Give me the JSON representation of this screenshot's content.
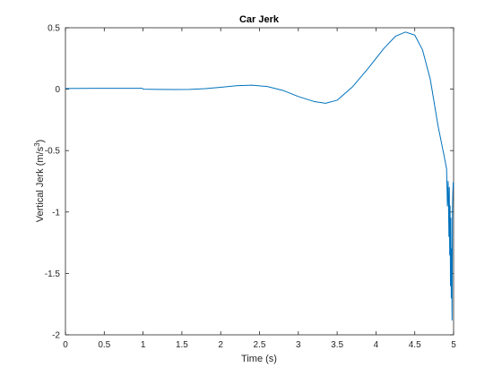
{
  "chart_data": {
    "type": "line",
    "title": "Car Jerk",
    "xlabel": "Time (s)",
    "ylabel_main": "Vertical Jerk (m/s",
    "ylabel_sup": "3",
    "ylabel_end": ")",
    "xlim": [
      0,
      5
    ],
    "ylim": [
      -2,
      0.5
    ],
    "xticks": [
      0,
      0.5,
      1,
      1.5,
      2,
      2.5,
      3,
      3.5,
      4,
      4.5,
      5
    ],
    "xtick_labels": [
      "0",
      "0.5",
      "1",
      "1.5",
      "2",
      "2.5",
      "3",
      "3.5",
      "4",
      "4.5",
      "5"
    ],
    "yticks": [
      0.5,
      0,
      -0.5,
      -1,
      -1.5,
      -2
    ],
    "ytick_labels": [
      "0.5",
      "0",
      "-0.5",
      "-1",
      "-1.5",
      "-2"
    ],
    "grid": false,
    "series": [
      {
        "color": "#0072BD",
        "x": [
          0,
          0.2,
          0.4,
          0.6,
          0.8,
          0.99,
          1.0,
          1.2,
          1.4,
          1.6,
          1.8,
          2.0,
          2.2,
          2.4,
          2.6,
          2.8,
          3.0,
          3.2,
          3.35,
          3.5,
          3.7,
          3.9,
          4.1,
          4.25,
          4.38,
          4.5,
          4.6,
          4.7,
          4.8,
          4.88,
          4.91,
          4.92,
          4.93,
          4.94,
          4.945,
          4.95,
          4.955,
          4.96,
          4.965,
          4.97,
          4.975,
          4.98,
          4.985,
          4.99,
          4.995,
          5.0
        ],
        "y": [
          0.005,
          0.006,
          0.007,
          0.007,
          0.007,
          0.007,
          0.0,
          -0.002,
          -0.003,
          -0.002,
          0.004,
          0.015,
          0.028,
          0.033,
          0.022,
          -0.01,
          -0.06,
          -0.1,
          -0.115,
          -0.09,
          0.02,
          0.17,
          0.33,
          0.43,
          0.465,
          0.44,
          0.32,
          0.08,
          -0.3,
          -0.55,
          -0.65,
          -0.95,
          -0.75,
          -1.2,
          -0.8,
          -1.35,
          -0.95,
          -1.6,
          -1.05,
          -1.7,
          -1.3,
          -1.88,
          -1.0,
          -0.85,
          -0.76,
          -0.8
        ]
      }
    ]
  }
}
